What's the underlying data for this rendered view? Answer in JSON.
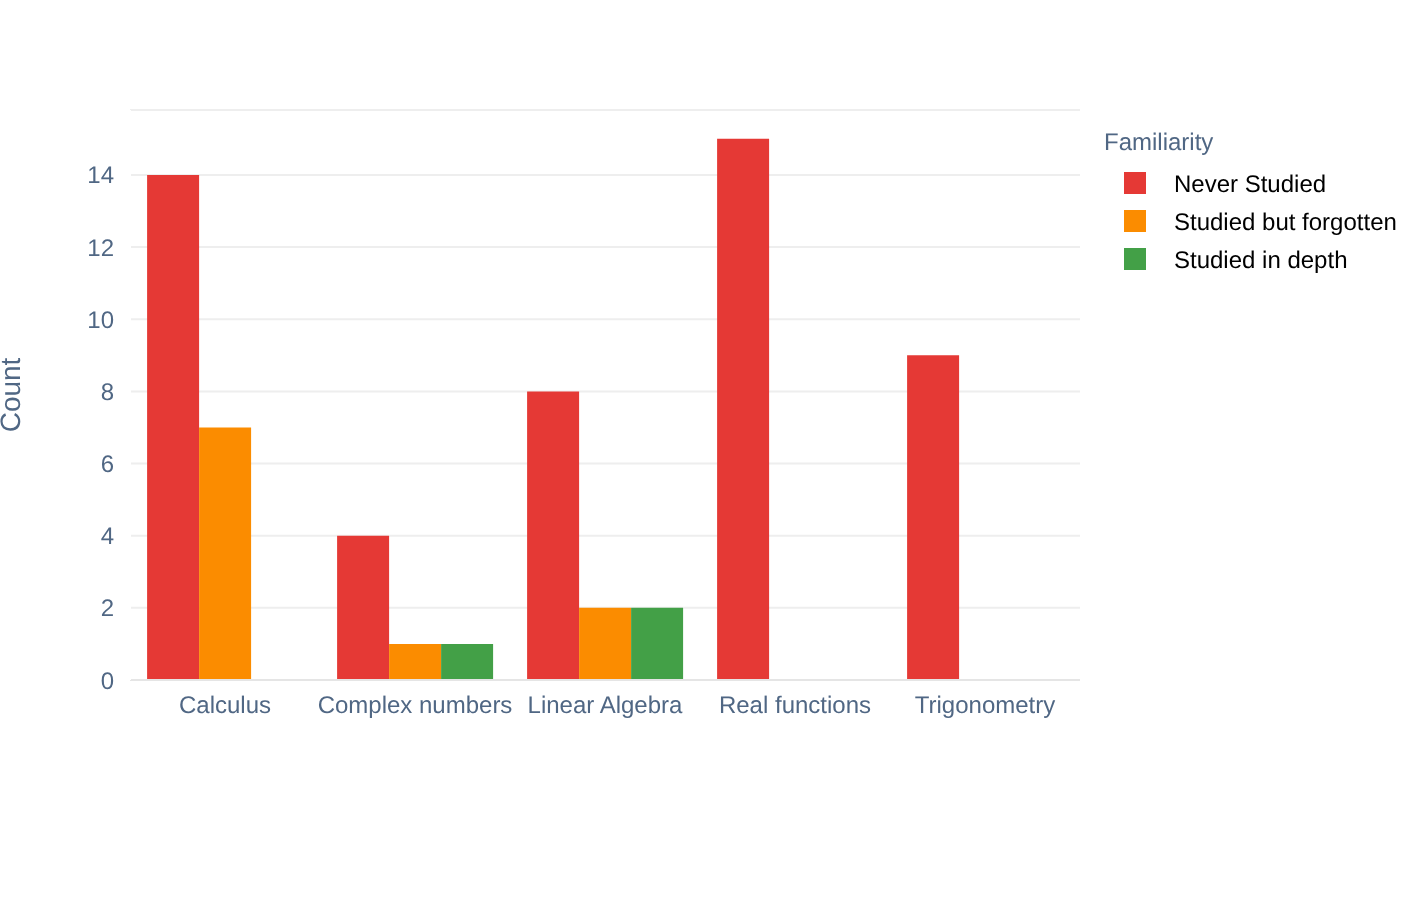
{
  "chart_data": {
    "type": "bar",
    "ylabel": "Count",
    "legend_title": "Familiarity",
    "categories": [
      "Calculus",
      "Complex numbers",
      "Linear Algebra",
      "Real functions",
      "Trigonometry"
    ],
    "series": [
      {
        "name": "Never Studied",
        "color": "#e53935",
        "values": [
          14,
          4,
          8,
          15,
          9
        ]
      },
      {
        "name": "Studied but forgotten",
        "color": "#fb8c00",
        "values": [
          7,
          1,
          2,
          0,
          0
        ]
      },
      {
        "name": "Studied in depth",
        "color": "#43a047",
        "values": [
          0,
          1,
          2,
          0,
          0
        ]
      }
    ],
    "ylim": [
      0,
      15.8
    ],
    "yticks": [
      0,
      2,
      4,
      6,
      8,
      10,
      12,
      14
    ],
    "grid": "y",
    "legend": "top right"
  }
}
